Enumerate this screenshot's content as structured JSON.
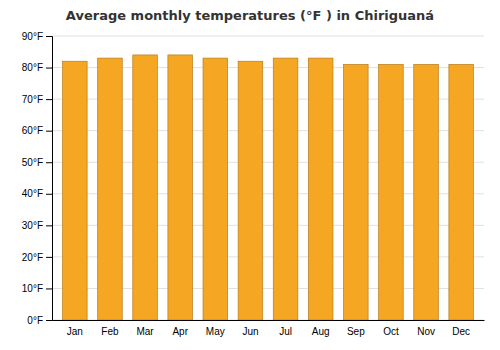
{
  "chart_data": {
    "type": "bar",
    "title": "Average monthly temperatures (°F ) in Chiriguaná",
    "categories": [
      "Jan",
      "Feb",
      "Mar",
      "Apr",
      "May",
      "Jun",
      "Jul",
      "Aug",
      "Sep",
      "Oct",
      "Nov",
      "Dec"
    ],
    "values": [
      82,
      83,
      84,
      84,
      83,
      82,
      83,
      83,
      81,
      81,
      81,
      81
    ],
    "color": "#F5A623",
    "ylim": [
      0,
      90
    ],
    "yticks": [
      {
        "value": 0,
        "label": "0°F"
      },
      {
        "value": 10,
        "label": "10°F"
      },
      {
        "value": 20,
        "label": "20°F"
      },
      {
        "value": 30,
        "label": "30°F"
      },
      {
        "value": 40,
        "label": "40°F"
      },
      {
        "value": 50,
        "label": "50°F"
      },
      {
        "value": 60,
        "label": "60°F"
      },
      {
        "value": 70,
        "label": "70°F"
      },
      {
        "value": 80,
        "label": "80°F"
      },
      {
        "value": 90,
        "label": "90°F"
      }
    ],
    "grid": true
  }
}
